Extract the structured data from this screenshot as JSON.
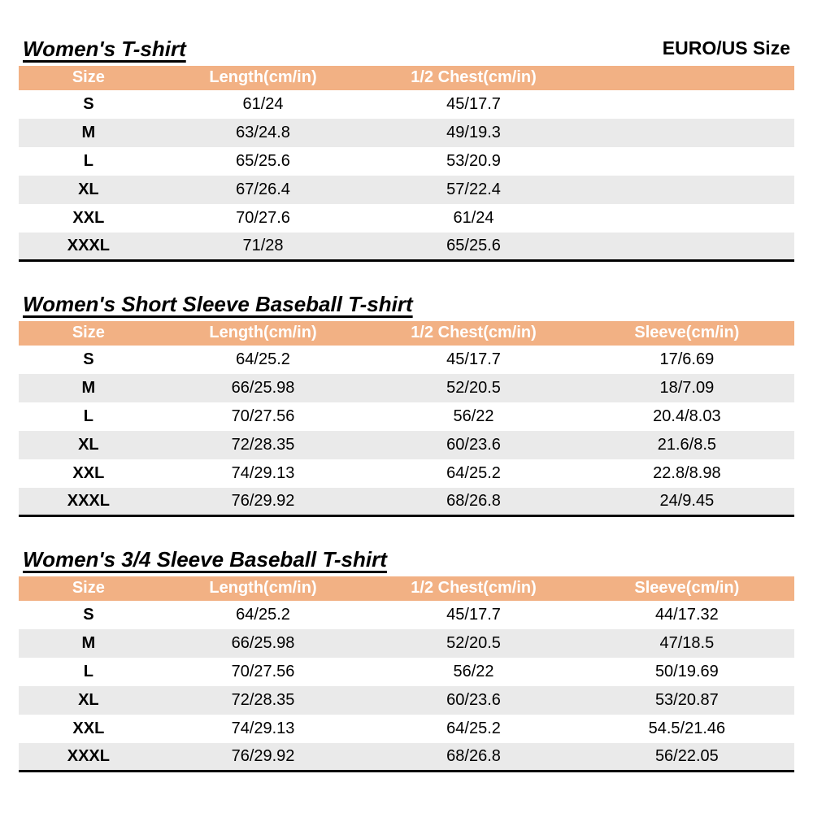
{
  "page_label": {
    "size_standard": "EURO/US Size"
  },
  "colors": {
    "header_bg": "#F2B184",
    "header_text": "#FFFFFF",
    "stripe_bg": "#EAEAEA",
    "border": "#000000"
  },
  "tables": [
    {
      "title": "Women's T-shirt",
      "columns": [
        "Size",
        "Length(cm/in)",
        "1/2 Chest(cm/in)"
      ],
      "rows": [
        [
          "S",
          "61/24",
          "45/17.7"
        ],
        [
          "M",
          "63/24.8",
          "49/19.3"
        ],
        [
          "L",
          "65/25.6",
          "53/20.9"
        ],
        [
          "XL",
          "67/26.4",
          "57/22.4"
        ],
        [
          "XXL",
          "70/27.6",
          "61/24"
        ],
        [
          "XXXL",
          "71/28",
          "65/25.6"
        ]
      ]
    },
    {
      "title": "Women's Short Sleeve Baseball T-shirt",
      "columns": [
        "Size",
        "Length(cm/in)",
        "1/2 Chest(cm/in)",
        "Sleeve(cm/in)"
      ],
      "rows": [
        [
          "S",
          "64/25.2",
          "45/17.7",
          "17/6.69"
        ],
        [
          "M",
          "66/25.98",
          "52/20.5",
          "18/7.09"
        ],
        [
          "L",
          "70/27.56",
          "56/22",
          "20.4/8.03"
        ],
        [
          "XL",
          "72/28.35",
          "60/23.6",
          "21.6/8.5"
        ],
        [
          "XXL",
          "74/29.13",
          "64/25.2",
          "22.8/8.98"
        ],
        [
          "XXXL",
          "76/29.92",
          "68/26.8",
          "24/9.45"
        ]
      ]
    },
    {
      "title": "Women's 3/4 Sleeve Baseball T-shirt",
      "columns": [
        "Size",
        "Length(cm/in)",
        "1/2 Chest(cm/in)",
        "Sleeve(cm/in)"
      ],
      "rows": [
        [
          "S",
          "64/25.2",
          "45/17.7",
          "44/17.32"
        ],
        [
          "M",
          "66/25.98",
          "52/20.5",
          "47/18.5"
        ],
        [
          "L",
          "70/27.56",
          "56/22",
          "50/19.69"
        ],
        [
          "XL",
          "72/28.35",
          "60/23.6",
          "53/20.87"
        ],
        [
          "XXL",
          "74/29.13",
          "64/25.2",
          "54.5/21.46"
        ],
        [
          "XXXL",
          "76/29.92",
          "68/26.8",
          "56/22.05"
        ]
      ]
    }
  ]
}
